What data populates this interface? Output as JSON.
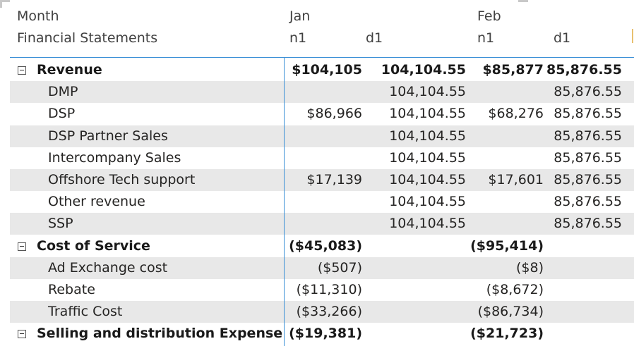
{
  "columns": {
    "row_header_top": "Month",
    "row_header_bottom": "Financial Statements",
    "month_jan": "Jan",
    "month_feb": "Feb",
    "jan_n1": "n1",
    "jan_d1": "d1",
    "feb_n1": "n1",
    "feb_d1": "d1"
  },
  "rows": [
    {
      "label": "Revenue",
      "group": true,
      "n1_jan": "$104,105",
      "d1_jan": "104,104.55",
      "n1_feb": "$85,877",
      "d1_feb": "85,876.55"
    },
    {
      "label": "DMP",
      "group": false,
      "n1_jan": "",
      "d1_jan": "104,104.55",
      "n1_feb": "",
      "d1_feb": "85,876.55"
    },
    {
      "label": "DSP",
      "group": false,
      "n1_jan": "$86,966",
      "d1_jan": "104,104.55",
      "n1_feb": "$68,276",
      "d1_feb": "85,876.55"
    },
    {
      "label": "DSP Partner Sales",
      "group": false,
      "n1_jan": "",
      "d1_jan": "104,104.55",
      "n1_feb": "",
      "d1_feb": "85,876.55"
    },
    {
      "label": "Intercompany Sales",
      "group": false,
      "n1_jan": "",
      "d1_jan": "104,104.55",
      "n1_feb": "",
      "d1_feb": "85,876.55"
    },
    {
      "label": "Offshore Tech support",
      "group": false,
      "n1_jan": "$17,139",
      "d1_jan": "104,104.55",
      "n1_feb": "$17,601",
      "d1_feb": "85,876.55"
    },
    {
      "label": "Other revenue",
      "group": false,
      "n1_jan": "",
      "d1_jan": "104,104.55",
      "n1_feb": "",
      "d1_feb": "85,876.55"
    },
    {
      "label": "SSP",
      "group": false,
      "n1_jan": "",
      "d1_jan": "104,104.55",
      "n1_feb": "",
      "d1_feb": "85,876.55"
    },
    {
      "label": "Cost of Service",
      "group": true,
      "n1_jan": "($45,083)",
      "d1_jan": "",
      "n1_feb": "($95,414)",
      "d1_feb": ""
    },
    {
      "label": "Ad Exchange cost",
      "group": false,
      "n1_jan": "($507)",
      "d1_jan": "",
      "n1_feb": "($8)",
      "d1_feb": ""
    },
    {
      "label": "Rebate",
      "group": false,
      "n1_jan": "($11,310)",
      "d1_jan": "",
      "n1_feb": "($8,672)",
      "d1_feb": ""
    },
    {
      "label": "Traffic Cost",
      "group": false,
      "n1_jan": "($33,266)",
      "d1_jan": "",
      "n1_feb": "($86,734)",
      "d1_feb": ""
    },
    {
      "label": "Selling and distribution Expense",
      "group": true,
      "n1_jan": "($19,381)",
      "d1_jan": "",
      "n1_feb": "($21,723)",
      "d1_feb": ""
    }
  ],
  "colors": {
    "accent_line": "#3a8fd6",
    "alt_row": "#e8e8e8",
    "text": "#252423"
  },
  "icons": {
    "group_toggle": "collapse-minus-icon"
  }
}
